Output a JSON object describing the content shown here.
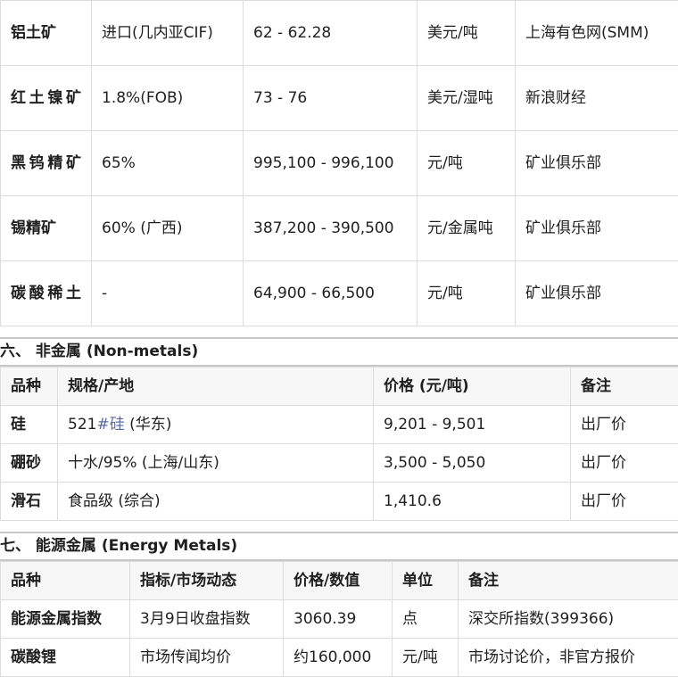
{
  "ore_table": {
    "rows": [
      [
        "铝土矿",
        "进口(几内亚CIF)",
        "62 - 62.28",
        "美元/吨",
        "上海有色网(SMM)"
      ],
      [
        "红土镍矿",
        "1.8%(FOB)",
        "73 - 76",
        "美元/湿吨",
        "新浪财经"
      ],
      [
        "黑钨精矿",
        "65%",
        "995,100 - 996,100",
        "元/吨",
        "矿业俱乐部"
      ],
      [
        "锡精矿",
        "60% (广西)",
        "387,200 - 390,500",
        "元/金属吨",
        "矿业俱乐部"
      ],
      [
        "碳酸稀土",
        "-",
        "64,900 - 66,500",
        "元/吨",
        "矿业俱乐部"
      ]
    ]
  },
  "nonmetals": {
    "heading": "六、 非金属 (Non-metals)",
    "headers": [
      "品种",
      "规格/产地",
      "价格 (元/吨)",
      "备注"
    ],
    "rows": [
      {
        "name": "硅",
        "spec_a": "521",
        "spec_link": "#硅",
        "spec_b": " (华东)",
        "price": "9,201 - 9,501",
        "note": "出厂价"
      },
      {
        "name": "硼砂",
        "spec_a": "十水/95% (上海/山东)",
        "spec_link": "",
        "spec_b": "",
        "price": "3,500 - 5,050",
        "note": "出厂价"
      },
      {
        "name": "滑石",
        "spec_a": "食品级 (综合)",
        "spec_link": "",
        "spec_b": "",
        "price": "1,410.6",
        "note": "出厂价"
      }
    ],
    "link_color": "#5a6aa0"
  },
  "energy": {
    "heading": "七、 能源金属 (Energy Metals)",
    "headers": [
      "品种",
      "指标/市场动态",
      "价格/数值",
      "单位",
      "备注"
    ],
    "rows": [
      [
        "能源金属指数",
        "3月9日收盘指数",
        "3060.39",
        "点",
        "深交所指数(399366)"
      ],
      [
        "碳酸锂",
        "市场传闻均价",
        "约160,000",
        "元/吨",
        "市场讨论价，非官方报价"
      ]
    ]
  }
}
